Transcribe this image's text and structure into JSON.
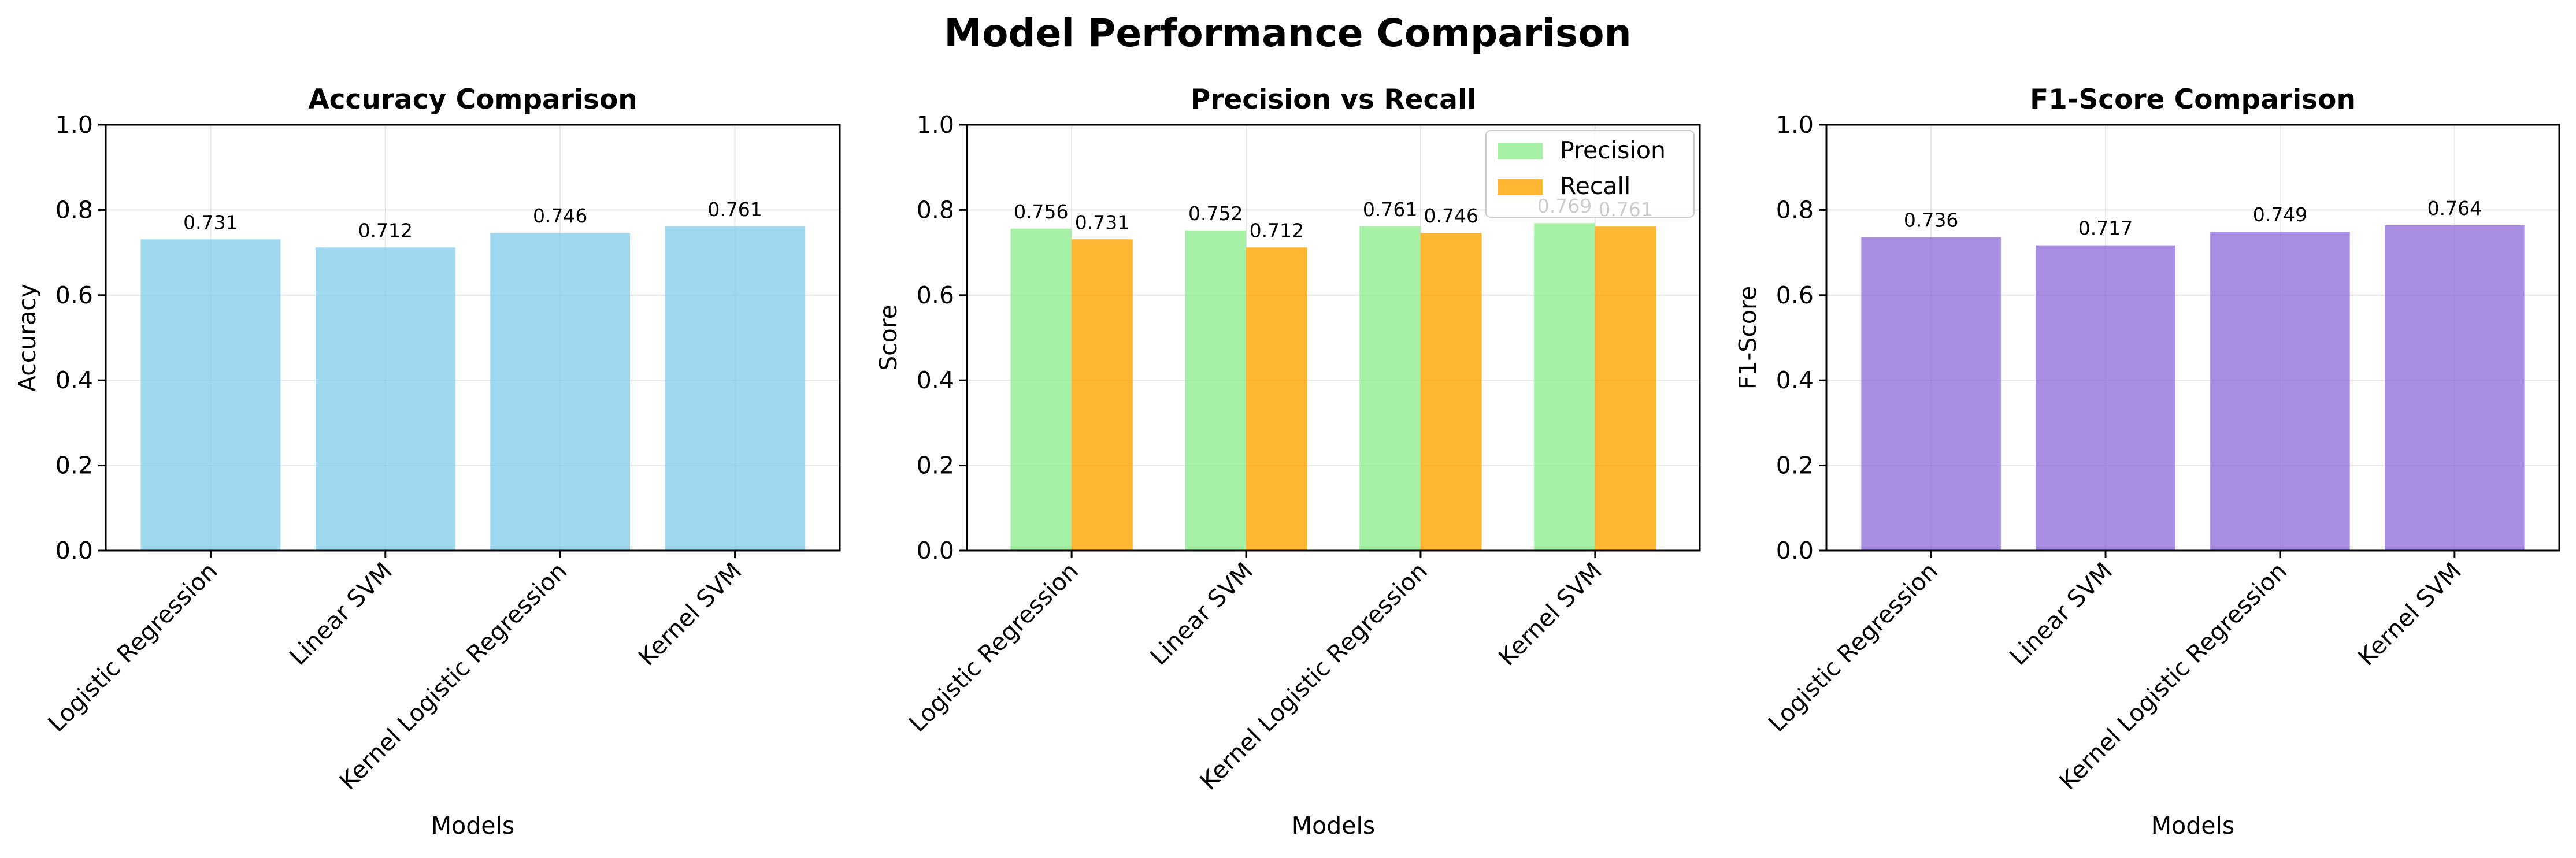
{
  "figure": {
    "title": "Model Performance Comparison"
  },
  "colors": {
    "accuracy": "#87ceeb",
    "precision": "#90ee90",
    "recall": "#ffa500",
    "f1": "#9370db"
  },
  "chart_data": [
    {
      "type": "bar",
      "title": "Accuracy Comparison",
      "xlabel": "Models",
      "ylabel": "Accuracy",
      "ylim": [
        0,
        1.0
      ],
      "yticks": [
        "0.0",
        "0.2",
        "0.4",
        "0.6",
        "0.8",
        "1.0"
      ],
      "grid": true,
      "categories": [
        "Logistic Regression",
        "Linear SVM",
        "Kernel Logistic Regression",
        "Kernel SVM"
      ],
      "series": [
        {
          "values": [
            0.731,
            0.712,
            0.746,
            0.761
          ],
          "labels": [
            "0.731",
            "0.712",
            "0.746",
            "0.761"
          ],
          "color": "#87ceeb"
        }
      ]
    },
    {
      "type": "bar",
      "title": "Precision vs Recall",
      "xlabel": "Models",
      "ylabel": "Score",
      "ylim": [
        0,
        1.0
      ],
      "yticks": [
        "0.0",
        "0.2",
        "0.4",
        "0.6",
        "0.8",
        "1.0"
      ],
      "grid": true,
      "legend": "top-right",
      "categories": [
        "Logistic Regression",
        "Linear SVM",
        "Kernel Logistic Regression",
        "Kernel SVM"
      ],
      "series": [
        {
          "name": "Precision",
          "values": [
            0.756,
            0.752,
            0.761,
            0.769
          ],
          "labels": [
            "0.756",
            "0.752",
            "0.761",
            "0.769"
          ],
          "color": "#90ee90"
        },
        {
          "name": "Recall",
          "values": [
            0.731,
            0.712,
            0.746,
            0.761
          ],
          "labels": [
            "0.731",
            "0.712",
            "0.746",
            "0.761"
          ],
          "color": "#ffa500"
        }
      ]
    },
    {
      "type": "bar",
      "title": "F1-Score Comparison",
      "xlabel": "Models",
      "ylabel": "F1-Score",
      "ylim": [
        0,
        1.0
      ],
      "yticks": [
        "0.0",
        "0.2",
        "0.4",
        "0.6",
        "0.8",
        "1.0"
      ],
      "grid": true,
      "categories": [
        "Logistic Regression",
        "Linear SVM",
        "Kernel Logistic Regression",
        "Kernel SVM"
      ],
      "series": [
        {
          "values": [
            0.736,
            0.717,
            0.749,
            0.764
          ],
          "labels": [
            "0.736",
            "0.717",
            "0.749",
            "0.764"
          ],
          "color": "#9370db"
        }
      ]
    }
  ]
}
